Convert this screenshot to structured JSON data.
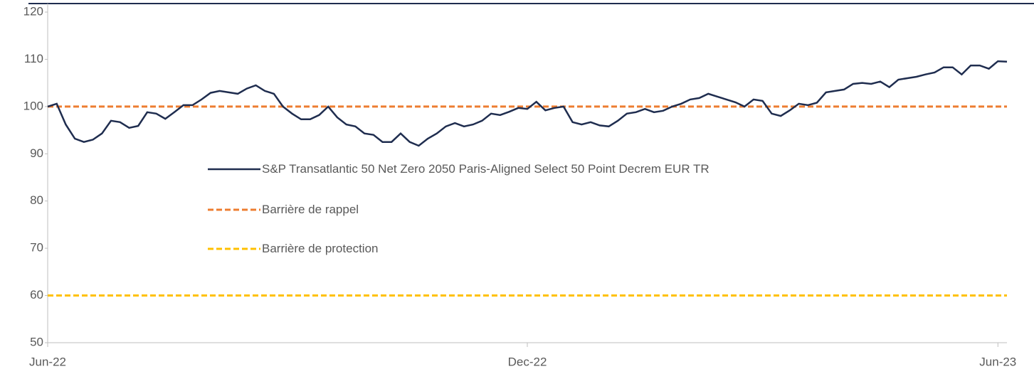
{
  "chart_data": {
    "type": "line",
    "categories": [
      "Jun-22",
      null,
      null,
      null,
      null,
      null,
      null,
      null,
      null,
      null,
      null,
      null,
      null,
      null,
      null,
      null,
      null,
      null,
      null,
      null,
      null,
      null,
      null,
      null,
      null,
      null,
      null,
      null,
      null,
      null,
      null,
      null,
      null,
      null,
      null,
      null,
      null,
      null,
      null,
      null,
      null,
      null,
      null,
      null,
      null,
      null,
      null,
      null,
      null,
      null,
      null,
      null,
      null,
      "Dec-22",
      null,
      null,
      null,
      null,
      null,
      null,
      null,
      null,
      null,
      null,
      null,
      null,
      null,
      null,
      null,
      null,
      null,
      null,
      null,
      null,
      null,
      null,
      null,
      null,
      null,
      null,
      null,
      null,
      null,
      null,
      null,
      null,
      null,
      null,
      null,
      null,
      null,
      null,
      null,
      null,
      null,
      null,
      null,
      null,
      null,
      null,
      null,
      null,
      null,
      null,
      null,
      "Jun-23",
      null
    ],
    "series": [
      {
        "name": "S&P Transatlantic 50 Net Zero 2050 Paris-Aligned Select 50 Point Decrem EUR TR",
        "color": "#1f2d4f",
        "values": [
          100,
          100.6,
          96.2,
          93.2,
          92.5,
          93,
          94.3,
          97,
          96.7,
          95.5,
          95.9,
          98.8,
          98.5,
          97.4,
          98.8,
          100.3,
          100.3,
          101.5,
          102.9,
          103.3,
          103,
          102.7,
          103.8,
          104.5,
          103.3,
          102.7,
          100,
          98.5,
          97.3,
          97.3,
          98.2,
          100,
          97.7,
          96.2,
          95.8,
          94.3,
          94,
          92.5,
          92.5,
          94.3,
          92.5,
          91.7,
          93.2,
          94.3,
          95.8,
          96.5,
          95.8,
          96.2,
          97,
          98.5,
          98.2,
          98.9,
          99.7,
          99.5,
          101,
          99.2,
          99.7,
          100,
          96.7,
          96.2,
          96.7,
          96,
          95.8,
          97,
          98.5,
          98.8,
          99.5,
          98.8,
          99.1,
          100,
          100.6,
          101.5,
          101.8,
          102.7,
          102.1,
          101.5,
          100.9,
          100,
          101.5,
          101.2,
          98.5,
          98,
          99.2,
          100.6,
          100.3,
          100.8,
          103,
          103.3,
          103.6,
          104.8,
          105,
          104.8,
          105.3,
          104.1,
          105.7,
          106,
          106.3,
          106.8,
          107.2,
          108.3,
          108.3,
          106.8,
          108.7,
          108.7,
          108,
          109.6,
          109.5
        ]
      }
    ],
    "hlines": [
      {
        "name": "Barrière de rappel",
        "color": "#ed7d31",
        "value": 100
      },
      {
        "name": "Barrière de protection",
        "color": "#ffc000",
        "value": 60
      }
    ],
    "ylim": [
      50,
      120
    ],
    "yticks": [
      50,
      60,
      70,
      80,
      90,
      100,
      110,
      120
    ]
  }
}
